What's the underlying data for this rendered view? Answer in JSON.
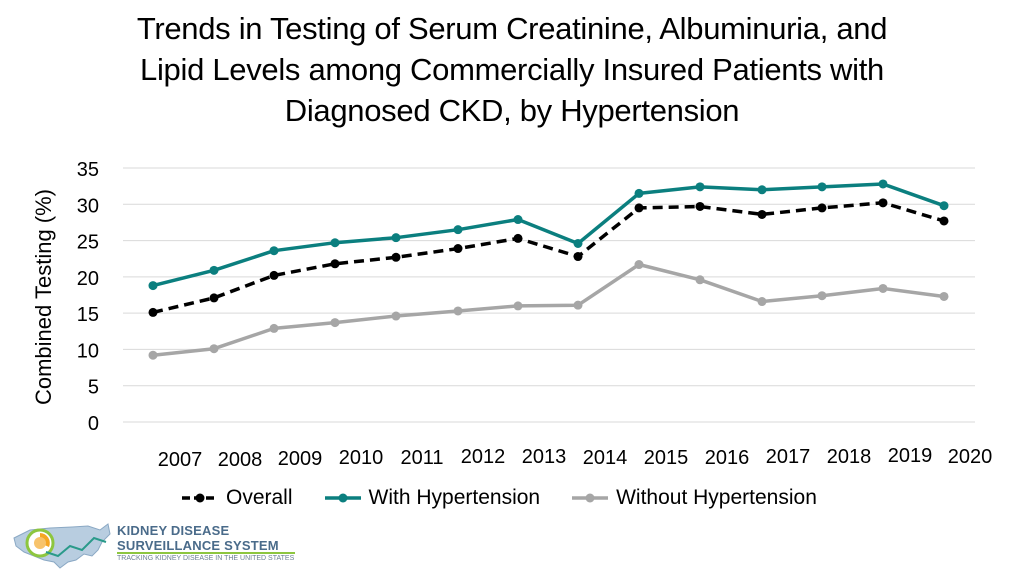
{
  "title": {
    "line1": "Trends in Testing of Serum Creatinine, Albuminuria, and",
    "line2": "Lipid Levels among Commercially Insured Patients with",
    "line3": "Diagnosed CKD, by Hypertension"
  },
  "logo": {
    "line1": "KIDNEY DISEASE",
    "line2": "SURVEILLANCE SYSTEM",
    "line3": "TRACKING KIDNEY DISEASE IN THE UNITED STATES"
  },
  "chart_data": {
    "type": "line",
    "title": "Trends in Testing of Serum Creatinine, Albuminuria, and Lipid Levels among Commercially Insured Patients with Diagnosed CKD, by Hypertension",
    "xlabel": "",
    "ylabel": "Combined Testing (%)",
    "ylim": [
      0,
      35
    ],
    "yticks": [
      0,
      5,
      10,
      15,
      20,
      25,
      30,
      35
    ],
    "grid": true,
    "legend_position": "bottom",
    "x": [
      "2007",
      "2008",
      "2009",
      "2010",
      "2011",
      "2012",
      "2013",
      "2014",
      "2015",
      "2016",
      "2017",
      "2018",
      "2019",
      "2020"
    ],
    "series": [
      {
        "name": "Overall",
        "color": "#000000",
        "dashed": true,
        "values": [
          15.1,
          17.1,
          20.2,
          21.8,
          22.7,
          23.9,
          25.3,
          22.8,
          29.5,
          29.7,
          28.6,
          29.5,
          30.2,
          27.7
        ]
      },
      {
        "name": "With Hypertension",
        "color": "#0b7f7f",
        "dashed": false,
        "values": [
          18.8,
          20.9,
          23.6,
          24.7,
          25.4,
          26.5,
          27.9,
          24.6,
          31.5,
          32.4,
          32.0,
          32.4,
          32.8,
          29.8
        ]
      },
      {
        "name": "Without Hypertension",
        "color": "#a6a6a6",
        "dashed": false,
        "values": [
          9.2,
          10.1,
          12.9,
          13.7,
          14.6,
          15.3,
          16.0,
          16.1,
          21.7,
          19.6,
          16.6,
          17.4,
          18.4,
          17.3
        ]
      }
    ]
  }
}
